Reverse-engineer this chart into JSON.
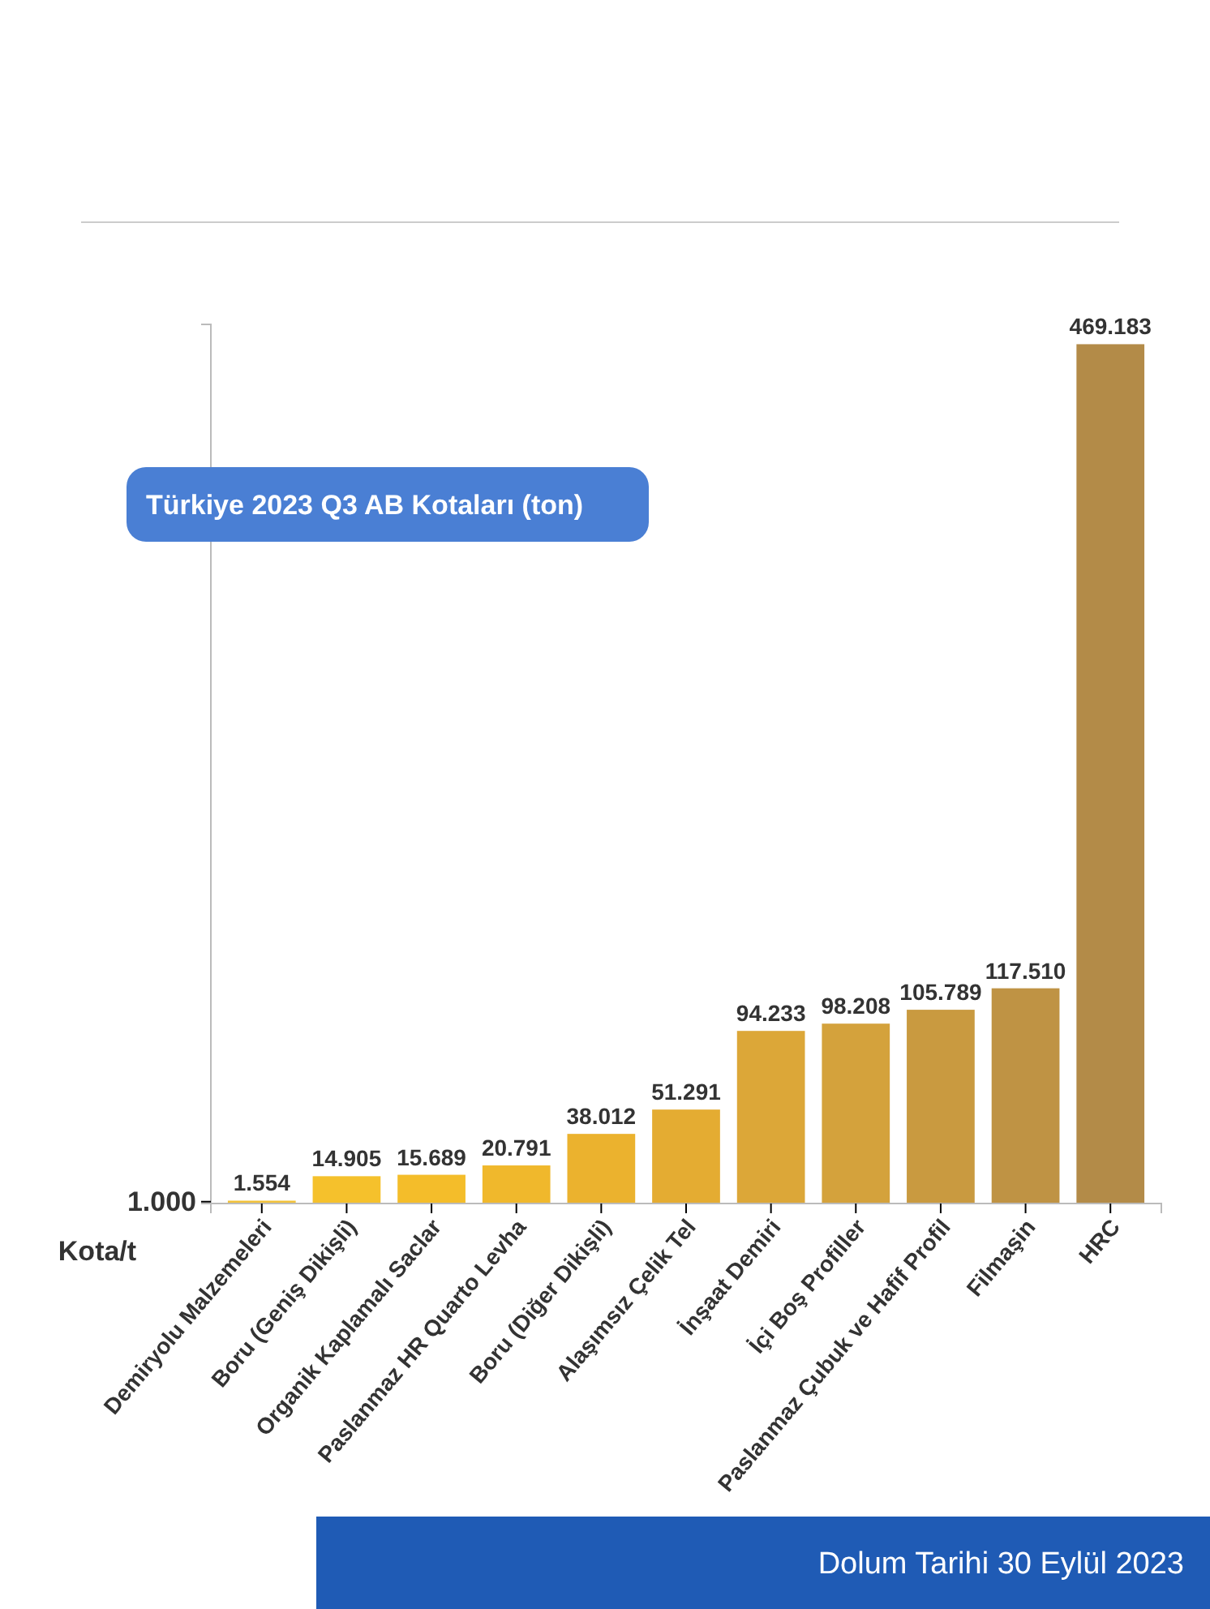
{
  "chart_data": {
    "type": "bar",
    "title": "Türkiye 2023 Q3 AB Kotaları (ton)",
    "ylabel": "Kota/t",
    "categories": [
      "Demiryolu Malzemeleri",
      "Boru (Geniş Dikişli)",
      "Organik Kaplamalı Saclar",
      "Paslanmaz HR Quarto Levha",
      "Boru (Diğer Dikişli)",
      "Alaşımsız Çelik Tel",
      "İnşaat Demiri",
      "İçi Boş Profiller",
      "Paslanmaz Çubuk ve Hafif Profil",
      "Filmaşin",
      "HRC"
    ],
    "values": [
      1554,
      14905,
      15689,
      20791,
      38012,
      51291,
      94233,
      98208,
      105789,
      117510,
      469183
    ],
    "value_labels": [
      "1.554",
      "14.905",
      "15.689",
      "20.791",
      "38.012",
      "51.291",
      "94.233",
      "98.208",
      "105.789",
      "117.510",
      "469.183"
    ],
    "colors": [
      "#f2c23a",
      "#f5c12c",
      "#f4bd2a",
      "#f0b82c",
      "#ebb22e",
      "#e4ac32",
      "#dca738",
      "#d4a23c",
      "#c99a40",
      "#bf9344",
      "#b38b48"
    ],
    "ylim": [
      0,
      480000
    ],
    "yticks": [
      {
        "value": 1000,
        "label": "1.000"
      }
    ],
    "grid": false,
    "annotations": [
      "Dolum Tarihi 30 Eylül 2023"
    ]
  }
}
